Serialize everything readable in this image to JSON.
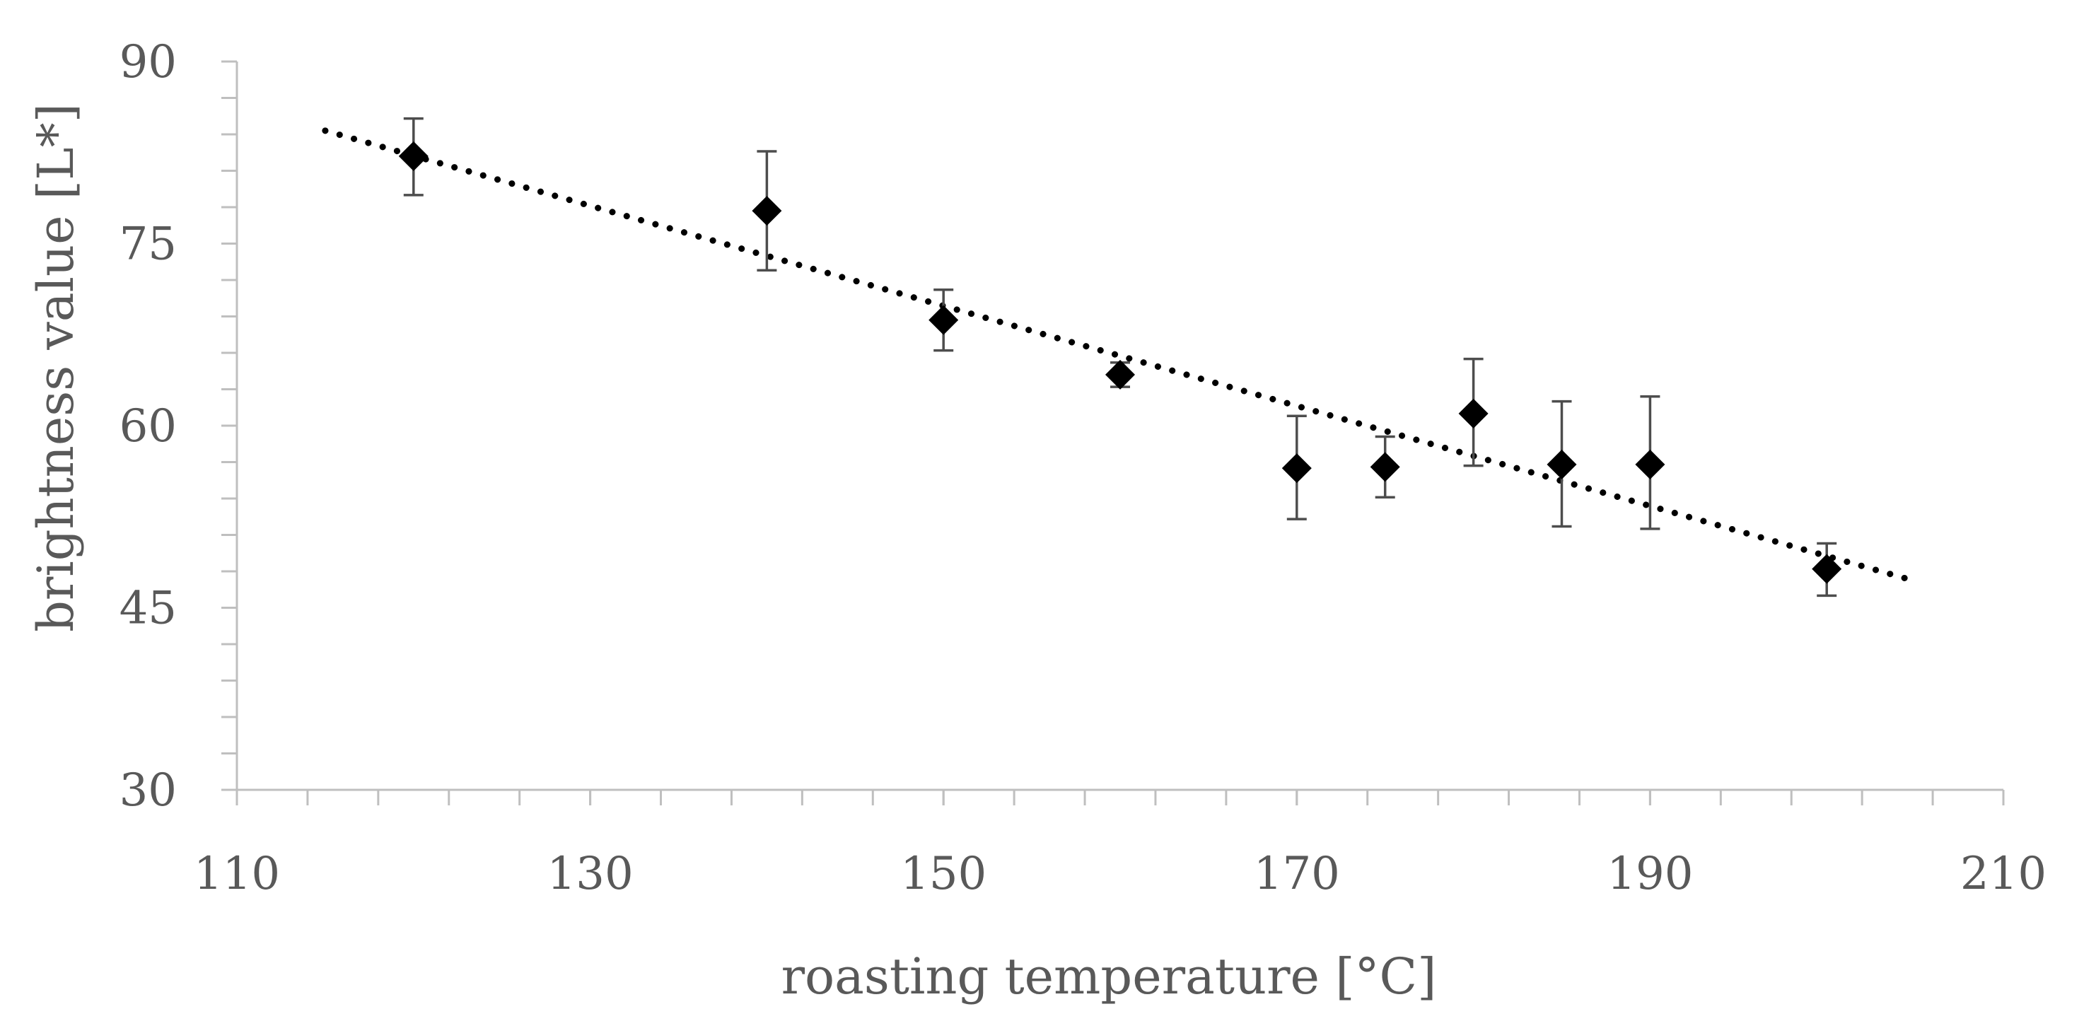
{
  "chart_data": {
    "type": "scatter",
    "title": "",
    "xlabel": "roasting temperature [°C]",
    "ylabel": "brightness value [L*]",
    "xlim": [
      110,
      210
    ],
    "ylim": [
      30,
      90
    ],
    "x_ticks": [
      110,
      130,
      150,
      170,
      190,
      210
    ],
    "y_ticks": [
      30,
      45,
      60,
      75,
      90
    ],
    "x_minor_step": 4,
    "y_minor_step": 3,
    "grid": false,
    "legend": "none",
    "series": [
      {
        "name": "brightness value",
        "marker": "diamond",
        "points": [
          {
            "x": 120,
            "y": 82.2,
            "err_low": 3.2,
            "err_high": 3.1
          },
          {
            "x": 140,
            "y": 77.7,
            "err_low": 4.9,
            "err_high": 4.9
          },
          {
            "x": 150,
            "y": 68.7,
            "err_low": 2.5,
            "err_high": 2.5
          },
          {
            "x": 160,
            "y": 64.2,
            "err_low": 1.0,
            "err_high": 1.0
          },
          {
            "x": 170,
            "y": 56.5,
            "err_low": 4.2,
            "err_high": 4.3
          },
          {
            "x": 175,
            "y": 56.6,
            "err_low": 2.5,
            "err_high": 2.5
          },
          {
            "x": 180,
            "y": 61.0,
            "err_low": 4.3,
            "err_high": 4.5
          },
          {
            "x": 185,
            "y": 56.8,
            "err_low": 5.1,
            "err_high": 5.2
          },
          {
            "x": 190,
            "y": 56.8,
            "err_low": 5.3,
            "err_high": 5.6
          },
          {
            "x": 200,
            "y": 48.2,
            "err_low": 2.2,
            "err_high": 2.1
          }
        ]
      }
    ],
    "trendline": {
      "type": "linear",
      "style": "dotted",
      "x_range": [
        115,
        205
      ],
      "y_start": 84.3,
      "y_end": 47.2
    }
  }
}
